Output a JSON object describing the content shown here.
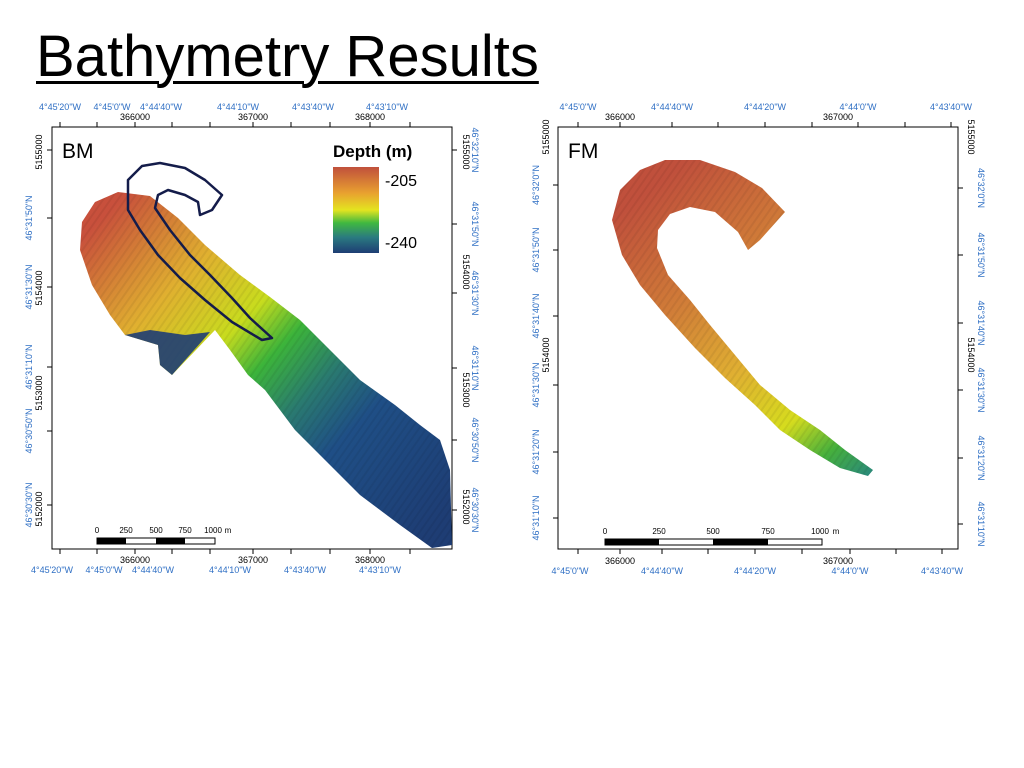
{
  "title": "Bathymetry Results",
  "colors": {
    "deep": "#1f3f78",
    "shallow": "#c8503c",
    "outline": "#141c4a",
    "lon_lat_labels": "#2f6fc4"
  },
  "maps": [
    {
      "id": "bm",
      "panel_label": "BM",
      "legend": {
        "title": "Depth (m)",
        "max_label": "-205",
        "min_label": "-240"
      },
      "top_lon_labels": [
        "4°45'20\"W",
        "4°45'0\"W",
        "4°44'40\"W",
        "4°44'10\"W",
        "4°43'40\"W",
        "4°43'10\"W"
      ],
      "top_easting_labels": [
        "366000",
        "367000",
        "368000"
      ],
      "bottom_lon_labels": [
        "4°45'20\"W",
        "4°45'0\"W",
        "4°44'40\"W",
        "4°44'10\"W",
        "4°43'40\"W",
        "4°43'10\"W"
      ],
      "bottom_easting_labels": [
        "366000",
        "367000",
        "368000"
      ],
      "left_northing_labels": [
        "5155000",
        "5154000",
        "5153000",
        "5152000"
      ],
      "left_lat_labels": [
        "46°31'50\"N",
        "46°31'30\"N",
        "46°31'10\"N",
        "46°30'50\"N",
        "46°30'30\"N"
      ],
      "right_northing_labels": [
        "5155000",
        "5154000",
        "5153000",
        "5152000"
      ],
      "right_lat_labels": [
        "46°32'10\"N",
        "46°31'50\"N",
        "46°31'30\"N",
        "46°31'10\"N",
        "46°30'50\"N",
        "46°30'30\"N"
      ],
      "scalebar": {
        "labels": [
          "0",
          "250",
          "500",
          "750",
          "1000"
        ],
        "unit": "m"
      }
    },
    {
      "id": "fm",
      "panel_label": "FM",
      "top_lon_labels": [
        "4°45'0\"W",
        "4°44'40\"W",
        "4°44'20\"W",
        "4°44'0\"W",
        "4°43'40\"W"
      ],
      "top_easting_labels": [
        "366000",
        "367000"
      ],
      "bottom_lon_labels": [
        "4°45'0\"W",
        "4°44'40\"W",
        "4°44'20\"W",
        "4°44'0\"W",
        "4°43'40\"W"
      ],
      "bottom_easting_labels": [
        "366000",
        "367000"
      ],
      "left_northing_labels": [
        "5155000",
        "5154000"
      ],
      "left_lat_labels": [
        "46°32'0\"N",
        "46°31'50\"N",
        "46°31'40\"N",
        "46°31'30\"N",
        "46°31'20\"N",
        "46°31'10\"N"
      ],
      "right_northing_labels": [
        "5155000",
        "5154000"
      ],
      "right_lat_labels": [
        "46°32'0\"N",
        "46°31'50\"N",
        "46°31'40\"N",
        "46°31'30\"N",
        "46°31'20\"N",
        "46°31'10\"N"
      ],
      "scalebar": {
        "labels": [
          "0",
          "250",
          "500",
          "750",
          "1000"
        ],
        "unit": "m"
      }
    }
  ]
}
